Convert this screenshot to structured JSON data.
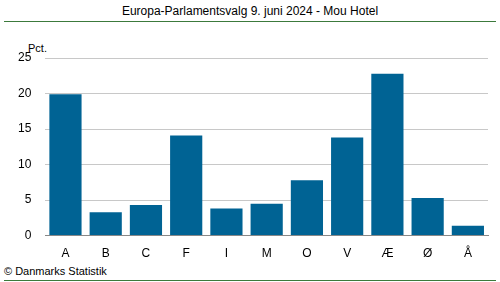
{
  "chart_data": {
    "type": "bar",
    "title": "Europa-Parlamentsvalg 9. juni 2024 - Mou Hotel",
    "ylabel": "Pct.",
    "source": "© Danmarks Statistik",
    "categories": [
      "A",
      "B",
      "C",
      "F",
      "I",
      "M",
      "O",
      "V",
      "Æ",
      "Ø",
      "Å"
    ],
    "values": [
      19.9,
      3.3,
      4.3,
      14.1,
      3.8,
      4.5,
      7.8,
      13.8,
      22.8,
      5.3,
      1.4
    ],
    "color": "#006394",
    "ylim": [
      0,
      25
    ],
    "yticks": [
      0,
      5,
      10,
      15,
      20,
      25
    ],
    "grid": true
  }
}
